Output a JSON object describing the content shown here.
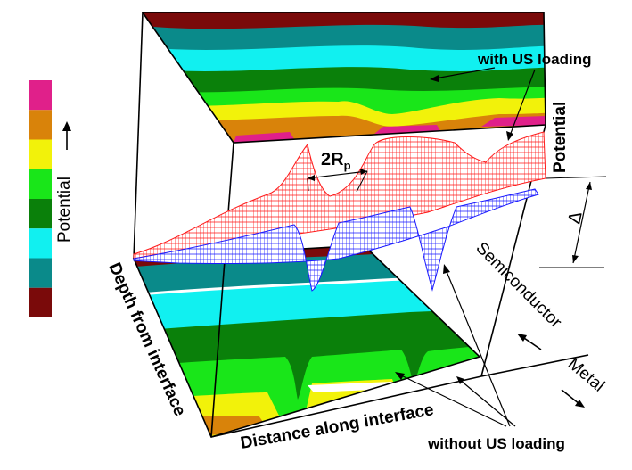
{
  "labels": {
    "with_us": "with US loading",
    "without_us": "without US loading",
    "potential_vertical": "Potential",
    "potential_legend": "Potential",
    "depth": "Depth from interface",
    "distance": "Distance along interface",
    "semiconductor": "Semiconductor",
    "metal": "Metal",
    "delta": "Δ",
    "two_r_main": "2R",
    "two_r_sub": "p"
  },
  "legend": {
    "colors_top_to_bottom": [
      "#e0208a",
      "#d9830a",
      "#f2f20a",
      "#19e619",
      "#0a800a",
      "#11f0f0",
      "#0a8a8a",
      "#7a0a0a"
    ]
  },
  "palette": {
    "dark_red": "#7a0a0a",
    "teal": "#0a8a8a",
    "cyan": "#11f0f0",
    "dark_green": "#0a800a",
    "green": "#19e619",
    "yellow": "#f2f20a",
    "orange": "#d9830a",
    "magenta": "#e0208a",
    "mesh_red": "#ff1a1a",
    "mesh_blue": "#1a1aff"
  },
  "icons": {
    "legend_arrow": "arrow-up-icon",
    "semiconductor_arrow": "arrow-up-left-icon",
    "metal_arrow": "arrow-down-right-icon"
  }
}
